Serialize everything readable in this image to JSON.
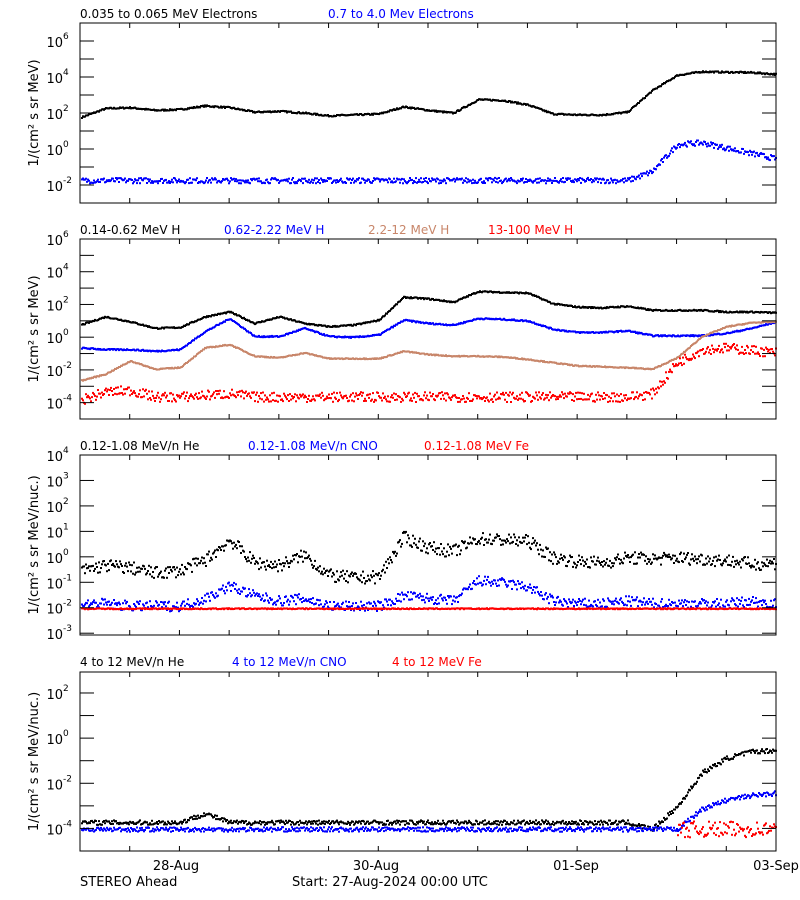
{
  "footer": {
    "spacecraft": "STEREO Ahead",
    "start": "Start: 27-Aug-2024 00:00 UTC"
  },
  "x_axis": {
    "xlim": [
      "2024-08-27 00:00",
      "2024-09-03 00:00"
    ],
    "tick_labels": [
      "28-Aug",
      "30-Aug",
      "01-Sep",
      "03-Sep"
    ],
    "tick_dates": [
      "2024-08-28 00:00",
      "2024-08-30 00:00",
      "2024-09-01 00:00",
      "2024-09-03 00:00"
    ],
    "minor_tick_interval_hours": 12
  },
  "chart_data": [
    {
      "type": "scatter",
      "yscale": "log",
      "ylabel": "1/(cm² s sr MeV)",
      "ylim": [
        0.001,
        10000000
      ],
      "ytick_values": [
        1000000,
        10000,
        100,
        1,
        0.01
      ],
      "legend_placement": "top",
      "x": [
        "2024-08-27 00:00",
        "2024-08-27 06:00",
        "2024-08-27 12:00",
        "2024-08-27 18:00",
        "2024-08-28 00:00",
        "2024-08-28 06:00",
        "2024-08-28 12:00",
        "2024-08-28 18:00",
        "2024-08-29 00:00",
        "2024-08-29 06:00",
        "2024-08-29 12:00",
        "2024-08-29 18:00",
        "2024-08-30 00:00",
        "2024-08-30 06:00",
        "2024-08-30 12:00",
        "2024-08-30 18:00",
        "2024-08-31 00:00",
        "2024-08-31 06:00",
        "2024-08-31 12:00",
        "2024-08-31 18:00",
        "2024-09-01 00:00",
        "2024-09-01 06:00",
        "2024-09-01 12:00",
        "2024-09-01 18:00",
        "2024-09-02 00:00",
        "2024-09-02 06:00",
        "2024-09-02 12:00",
        "2024-09-02 18:00",
        "2024-09-03 00:00"
      ],
      "series": [
        {
          "name": "0.035 to 0.065 MeV Electrons",
          "color": "#000000",
          "values": [
            63,
            200,
            224,
            158,
            178,
            280,
            224,
            126,
            141,
            112,
            79,
            89,
            100,
            250,
            158,
            112,
            630,
            560,
            316,
            100,
            89,
            89,
            126,
            2000,
            14100,
            22400,
            20900,
            20000,
            15800
          ]
        },
        {
          "name": "0.7 to 4.0 Mev Electrons",
          "color": "#0000ff",
          "values": [
            0.02,
            0.02,
            0.02,
            0.02,
            0.02,
            0.02,
            0.02,
            0.02,
            0.02,
            0.02,
            0.02,
            0.02,
            0.02,
            0.02,
            0.02,
            0.02,
            0.02,
            0.02,
            0.02,
            0.02,
            0.02,
            0.02,
            0.02,
            0.063,
            2.0,
            2.5,
            1.26,
            0.63,
            0.316
          ]
        }
      ]
    },
    {
      "type": "scatter",
      "yscale": "log",
      "ylabel": "1/(cm² s sr MeV)",
      "ylim": [
        1e-05,
        1000000
      ],
      "ytick_values": [
        1000000,
        10000,
        100,
        1,
        0.01,
        0.0001
      ],
      "legend_placement": "top",
      "x": [
        "2024-08-27 00:00",
        "2024-08-27 06:00",
        "2024-08-27 12:00",
        "2024-08-27 18:00",
        "2024-08-28 00:00",
        "2024-08-28 06:00",
        "2024-08-28 12:00",
        "2024-08-28 18:00",
        "2024-08-29 00:00",
        "2024-08-29 06:00",
        "2024-08-29 12:00",
        "2024-08-29 18:00",
        "2024-08-30 00:00",
        "2024-08-30 06:00",
        "2024-08-30 12:00",
        "2024-08-30 18:00",
        "2024-08-31 00:00",
        "2024-08-31 06:00",
        "2024-08-31 12:00",
        "2024-08-31 18:00",
        "2024-09-01 00:00",
        "2024-09-01 06:00",
        "2024-09-01 12:00",
        "2024-09-01 18:00",
        "2024-09-02 00:00",
        "2024-09-02 06:00",
        "2024-09-02 12:00",
        "2024-09-02 18:00",
        "2024-09-03 00:00"
      ],
      "series": [
        {
          "name": "0.14-0.62 MeV H",
          "color": "#000000",
          "values": [
            6.3,
            20,
            10,
            4.0,
            4.5,
            20,
            40,
            7.9,
            20,
            7.9,
            5.0,
            6.3,
            12.6,
            316,
            250,
            158,
            708,
            630,
            562,
            126,
            79,
            71,
            89,
            50,
            50,
            50,
            40,
            40,
            35
          ]
        },
        {
          "name": "0.62-2.22 MeV H",
          "color": "#0000ff",
          "values": [
            0.25,
            0.2,
            0.2,
            0.158,
            0.2,
            2.5,
            15.8,
            1.26,
            1.26,
            4.0,
            1.26,
            1.12,
            1.58,
            12.6,
            7.9,
            6.3,
            15.8,
            14.1,
            11.2,
            3.5,
            2.24,
            2.24,
            2.8,
            1.41,
            1.41,
            1.41,
            2.0,
            4.0,
            10
          ]
        },
        {
          "name": "2.2-12 MeV H",
          "color": "#c8866a",
          "values": [
            0.0025,
            0.0063,
            0.04,
            0.0126,
            0.0158,
            0.25,
            0.4,
            0.079,
            0.063,
            0.126,
            0.056,
            0.056,
            0.056,
            0.158,
            0.1,
            0.079,
            0.079,
            0.071,
            0.05,
            0.0316,
            0.02,
            0.0178,
            0.0158,
            0.0126,
            0.063,
            1.26,
            5.0,
            8.9,
            10
          ]
        },
        {
          "name": "13-100 MeV H",
          "color": "#ff0000",
          "values": [
            0.00016,
            0.0005,
            0.00063,
            0.00025,
            0.00025,
            0.00032,
            0.0004,
            0.00025,
            0.00025,
            0.00025,
            0.00025,
            0.00025,
            0.00025,
            0.00025,
            0.00025,
            0.00025,
            0.00025,
            0.00025,
            0.00025,
            0.00025,
            0.00025,
            0.00025,
            0.00025,
            0.0004,
            0.0316,
            0.2,
            0.25,
            0.178,
            0.126
          ]
        }
      ]
    },
    {
      "type": "scatter",
      "yscale": "log",
      "ylabel": "1/(cm² s sr MeV/nuc.)",
      "ylim": [
        0.00085,
        10000
      ],
      "ytick_values": [
        10000,
        1000,
        100,
        10,
        1,
        0.1,
        0.01,
        0.001
      ],
      "legend_placement": "top",
      "x": [
        "2024-08-27 00:00",
        "2024-08-27 06:00",
        "2024-08-27 12:00",
        "2024-08-27 18:00",
        "2024-08-28 00:00",
        "2024-08-28 06:00",
        "2024-08-28 12:00",
        "2024-08-28 18:00",
        "2024-08-29 00:00",
        "2024-08-29 06:00",
        "2024-08-29 12:00",
        "2024-08-29 18:00",
        "2024-08-30 00:00",
        "2024-08-30 06:00",
        "2024-08-30 12:00",
        "2024-08-30 18:00",
        "2024-08-31 00:00",
        "2024-08-31 06:00",
        "2024-08-31 12:00",
        "2024-08-31 18:00",
        "2024-09-01 00:00",
        "2024-09-01 06:00",
        "2024-09-01 12:00",
        "2024-09-01 18:00",
        "2024-09-02 00:00",
        "2024-09-02 06:00",
        "2024-09-02 12:00",
        "2024-09-02 18:00",
        "2024-09-03 00:00"
      ],
      "series": [
        {
          "name": "0.12-1.08 MeV/n He",
          "color": "#000000",
          "values": [
            0.316,
            0.5,
            0.4,
            0.25,
            0.316,
            0.79,
            5.0,
            0.63,
            0.5,
            1.26,
            0.2,
            0.158,
            0.178,
            6.3,
            2.5,
            1.78,
            5.6,
            5.0,
            4.5,
            1.0,
            0.71,
            0.63,
            1.0,
            0.89,
            1.0,
            0.89,
            0.79,
            0.56,
            0.63
          ]
        },
        {
          "name": "0.12-1.08 MeV/n CNO",
          "color": "#0000ff",
          "values": [
            0.0158,
            0.0158,
            0.0126,
            0.0126,
            0.0126,
            0.025,
            0.079,
            0.0316,
            0.02,
            0.025,
            0.0126,
            0.0126,
            0.0126,
            0.0316,
            0.025,
            0.02,
            0.126,
            0.1,
            0.071,
            0.02,
            0.0158,
            0.0158,
            0.02,
            0.0158,
            0.0158,
            0.0158,
            0.0158,
            0.02,
            0.0158
          ]
        },
        {
          "name": "0.12-1.08 MeV Fe",
          "color": "#ff0000",
          "values": [
            0.01,
            0.01,
            0.01,
            0.01,
            0.01,
            0.01,
            0.01,
            0.01,
            0.01,
            0.01,
            0.01,
            0.01,
            0.01,
            0.01,
            0.01,
            0.01,
            0.01,
            0.01,
            0.01,
            0.01,
            0.01,
            0.01,
            0.01,
            0.01,
            0.01,
            0.01,
            0.01,
            0.01,
            0.01
          ]
        }
      ]
    },
    {
      "type": "scatter",
      "yscale": "log",
      "ylabel": "1/(cm² s sr MeV/nuc.)",
      "ylim": [
        1e-05,
        850
      ],
      "ytick_values": [
        100,
        1,
        0.01,
        0.0001
      ],
      "legend_placement": "top",
      "x": [
        "2024-08-27 00:00",
        "2024-08-27 06:00",
        "2024-08-27 12:00",
        "2024-08-27 18:00",
        "2024-08-28 00:00",
        "2024-08-28 06:00",
        "2024-08-28 12:00",
        "2024-08-28 18:00",
        "2024-08-29 00:00",
        "2024-08-29 06:00",
        "2024-08-29 12:00",
        "2024-08-29 18:00",
        "2024-08-30 00:00",
        "2024-08-30 06:00",
        "2024-08-30 12:00",
        "2024-08-30 18:00",
        "2024-08-31 00:00",
        "2024-08-31 06:00",
        "2024-08-31 12:00",
        "2024-08-31 18:00",
        "2024-09-01 00:00",
        "2024-09-01 06:00",
        "2024-09-01 12:00",
        "2024-09-01 18:00",
        "2024-09-02 00:00",
        "2024-09-02 06:00",
        "2024-09-02 12:00",
        "2024-09-02 18:00",
        "2024-09-03 00:00"
      ],
      "series": [
        {
          "name": "4 to 12 MeV/n He",
          "color": "#000000",
          "values": [
            0.0002,
            0.0002,
            0.0002,
            0.0002,
            0.0002,
            0.0005,
            0.0002,
            0.0002,
            0.0002,
            0.0002,
            0.0002,
            0.0002,
            0.0002,
            0.0002,
            0.0002,
            0.0002,
            0.0002,
            0.0002,
            0.0002,
            0.0002,
            0.0002,
            0.0002,
            0.0002,
            0.0001,
            0.001,
            0.0316,
            0.141,
            0.28,
            0.316
          ]
        },
        {
          "name": "4 to 12 MeV/n CNO",
          "color": "#0000ff",
          "values": [
            0.0001,
            0.0001,
            0.0001,
            0.0001,
            0.0001,
            0.0001,
            0.0001,
            0.0001,
            0.0001,
            0.0001,
            0.0001,
            0.0001,
            0.0001,
            0.0001,
            0.0001,
            0.0001,
            0.0001,
            0.0001,
            0.0001,
            0.0001,
            0.0001,
            0.0001,
            0.0001,
            0.0001,
            0.0001,
            0.00079,
            0.002,
            0.00316,
            0.004
          ]
        },
        {
          "name": "4 to 12 MeV Fe",
          "color": "#ff0000",
          "values": [
            null,
            null,
            null,
            null,
            null,
            null,
            null,
            null,
            null,
            null,
            null,
            null,
            null,
            null,
            null,
            null,
            null,
            null,
            null,
            null,
            null,
            null,
            null,
            null,
            0.0001,
            0.0001,
            0.0001,
            0.0001,
            0.0001
          ]
        }
      ]
    }
  ]
}
